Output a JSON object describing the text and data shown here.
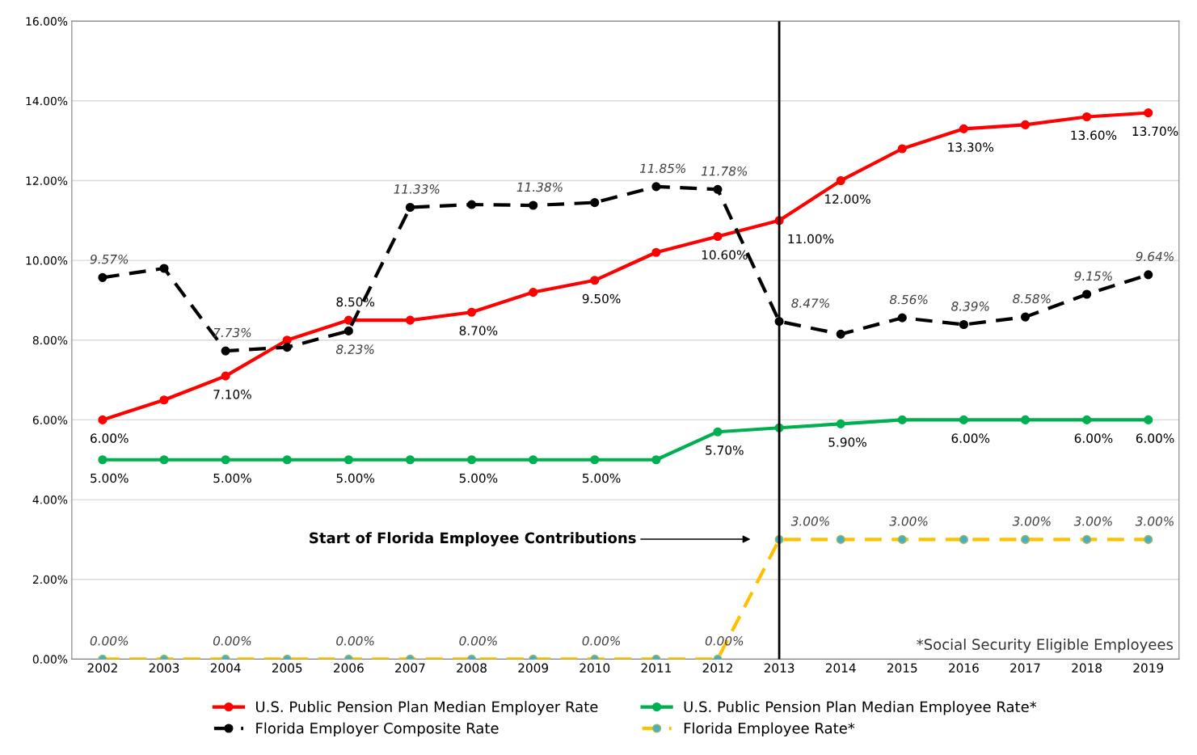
{
  "chart_data": {
    "type": "line",
    "categories": [
      "2002",
      "2003",
      "2004",
      "2005",
      "2006",
      "2007",
      "2008",
      "2009",
      "2010",
      "2011",
      "2012",
      "2013",
      "2014",
      "2015",
      "2016",
      "2017",
      "2018",
      "2019"
    ],
    "ylim": [
      0,
      16
    ],
    "yticks": [
      {
        "value": 0,
        "label": "0.00%"
      },
      {
        "value": 2,
        "label": "2.00%"
      },
      {
        "value": 4,
        "label": "4.00%"
      },
      {
        "value": 6,
        "label": "6.00%"
      },
      {
        "value": 8,
        "label": "8.00%"
      },
      {
        "value": 10,
        "label": "10.00%"
      },
      {
        "value": 12,
        "label": "12.00%"
      },
      {
        "value": 14,
        "label": "14.00%"
      },
      {
        "value": 16,
        "label": "16.00%"
      }
    ],
    "grid": "y",
    "legend": "bottom",
    "marker": "circle",
    "series": [
      {
        "name": "U.S. Public Pension Plan Median Employer Rate",
        "color": "#ff0000",
        "line_style": "solid",
        "values": [
          6.0,
          6.5,
          7.1,
          8.0,
          8.5,
          8.5,
          8.7,
          9.2,
          9.5,
          10.2,
          10.6,
          11.0,
          12.0,
          12.8,
          13.3,
          13.4,
          13.6,
          13.7
        ],
        "value_labels": [
          "6.00%",
          null,
          "7.10%",
          null,
          "8.50%",
          null,
          "8.70%",
          null,
          "9.50%",
          null,
          "10.60%",
          "11.00%",
          "12.00%",
          null,
          "13.30%",
          null,
          "13.60%",
          "13.70%"
        ]
      },
      {
        "name": "U.S. Public Pension Plan Median Employee Rate*",
        "color": "#00b050",
        "line_style": "solid",
        "values": [
          5,
          5,
          5,
          5,
          5,
          5,
          5,
          5,
          5,
          5,
          5.7,
          5.8,
          5.9,
          6,
          6,
          6,
          6,
          6
        ],
        "value_labels": [
          "5.00%",
          null,
          "5.00%",
          null,
          "5.00%",
          null,
          "5.00%",
          null,
          "5.00%",
          null,
          "5.70%",
          null,
          "5.90%",
          null,
          "6.00%",
          null,
          "6.00%",
          "6.00%"
        ]
      },
      {
        "name": "Florida Employer Composite Rate",
        "color": "#000000",
        "line_style": "dashed",
        "values": [
          9.57,
          9.8,
          7.73,
          7.82,
          8.23,
          11.33,
          11.4,
          11.38,
          11.45,
          11.85,
          11.78,
          8.47,
          8.15,
          8.56,
          8.39,
          8.58,
          9.15,
          9.64
        ],
        "value_labels": [
          "9.57%",
          null,
          "7.73%",
          null,
          "8.23%",
          "11.33%",
          null,
          "11.38%",
          null,
          "11.85%",
          "11.78%",
          "8.47%",
          null,
          "8.56%",
          "8.39%",
          "8.58%",
          "9.15%",
          "9.64%"
        ]
      },
      {
        "name": "Florida Employee Rate*",
        "color": "#ffc000",
        "line_style": "dashed",
        "values": [
          0,
          0,
          0,
          0,
          0,
          0,
          0,
          0,
          0,
          0,
          0,
          3,
          3,
          3,
          3,
          3,
          3,
          3
        ],
        "value_labels": [
          "0.00%",
          null,
          "0.00%",
          null,
          "0.00%",
          null,
          "0.00%",
          null,
          "0.00%",
          null,
          "0.00%",
          "3.00%",
          null,
          "3.00%",
          null,
          "3.00%",
          "3.00%",
          "3.00%"
        ]
      }
    ],
    "ref_lines": [
      {
        "axis": "x",
        "value": "2013",
        "color": "#000000"
      }
    ],
    "annotations": [
      "Start of Florida Employee Contributions",
      "*Social Security Eligible Employees"
    ]
  }
}
